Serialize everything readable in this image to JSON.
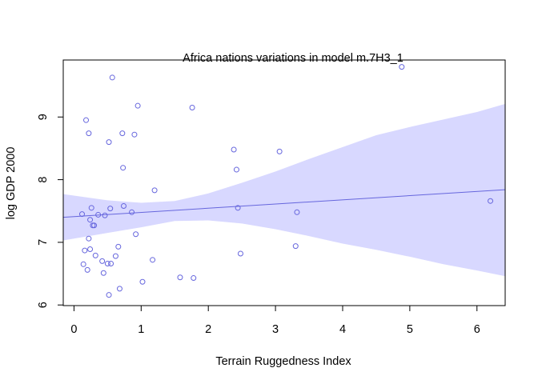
{
  "chart_data": {
    "type": "scatter",
    "title": "Africa nations variations in model m.7H3_1",
    "xlabel": "Terrain Ruggedness Index",
    "ylabel": "log GDP 2000",
    "xlim": [
      -0.16,
      6.42
    ],
    "ylim": [
      5.99,
      9.91
    ],
    "xticks": [
      0,
      1,
      2,
      3,
      4,
      5,
      6
    ],
    "yticks": [
      6,
      7,
      8,
      9
    ],
    "grid": false,
    "colors": {
      "points": "#6666dd",
      "line": "#6666dd",
      "band": "#d8d8ff"
    },
    "regression_line": {
      "x": [
        -0.16,
        6.42
      ],
      "y": [
        7.4,
        7.84
      ]
    },
    "confidence_band": {
      "x": [
        -0.16,
        0.5,
        1.0,
        1.5,
        2.0,
        2.5,
        3.0,
        3.5,
        4.0,
        4.5,
        5.0,
        5.5,
        6.0,
        6.42
      ],
      "upper": [
        7.77,
        7.67,
        7.63,
        7.66,
        7.78,
        7.95,
        8.13,
        8.33,
        8.52,
        8.71,
        8.84,
        8.96,
        9.08,
        9.21
      ],
      "lower": [
        7.03,
        7.15,
        7.24,
        7.34,
        7.35,
        7.3,
        7.21,
        7.1,
        6.98,
        6.88,
        6.77,
        6.65,
        6.55,
        6.46
      ]
    },
    "points": {
      "x": [
        0.12,
        0.14,
        0.16,
        0.18,
        0.2,
        0.22,
        0.22,
        0.24,
        0.24,
        0.26,
        0.28,
        0.3,
        0.32,
        0.36,
        0.42,
        0.44,
        0.46,
        0.5,
        0.52,
        0.52,
        0.54,
        0.55,
        0.57,
        0.62,
        0.66,
        0.68,
        0.72,
        0.73,
        0.74,
        0.86,
        0.9,
        0.92,
        0.95,
        1.02,
        1.17,
        1.2,
        1.58,
        1.76,
        1.78,
        2.38,
        2.42,
        2.44,
        2.48,
        3.06,
        3.3,
        3.32,
        4.88,
        6.2
      ],
      "y": [
        7.45,
        6.65,
        6.87,
        8.95,
        6.56,
        7.06,
        8.74,
        6.89,
        7.36,
        7.55,
        7.27,
        7.27,
        6.79,
        7.44,
        6.7,
        6.51,
        7.43,
        6.66,
        6.16,
        8.6,
        7.54,
        6.66,
        9.63,
        6.78,
        6.93,
        6.26,
        8.74,
        8.19,
        7.58,
        7.48,
        8.72,
        7.13,
        9.18,
        6.37,
        6.72,
        7.83,
        6.44,
        9.15,
        6.43,
        8.48,
        8.16,
        7.55,
        6.82,
        8.45,
        6.94,
        7.48,
        9.8,
        7.66
      ]
    }
  }
}
